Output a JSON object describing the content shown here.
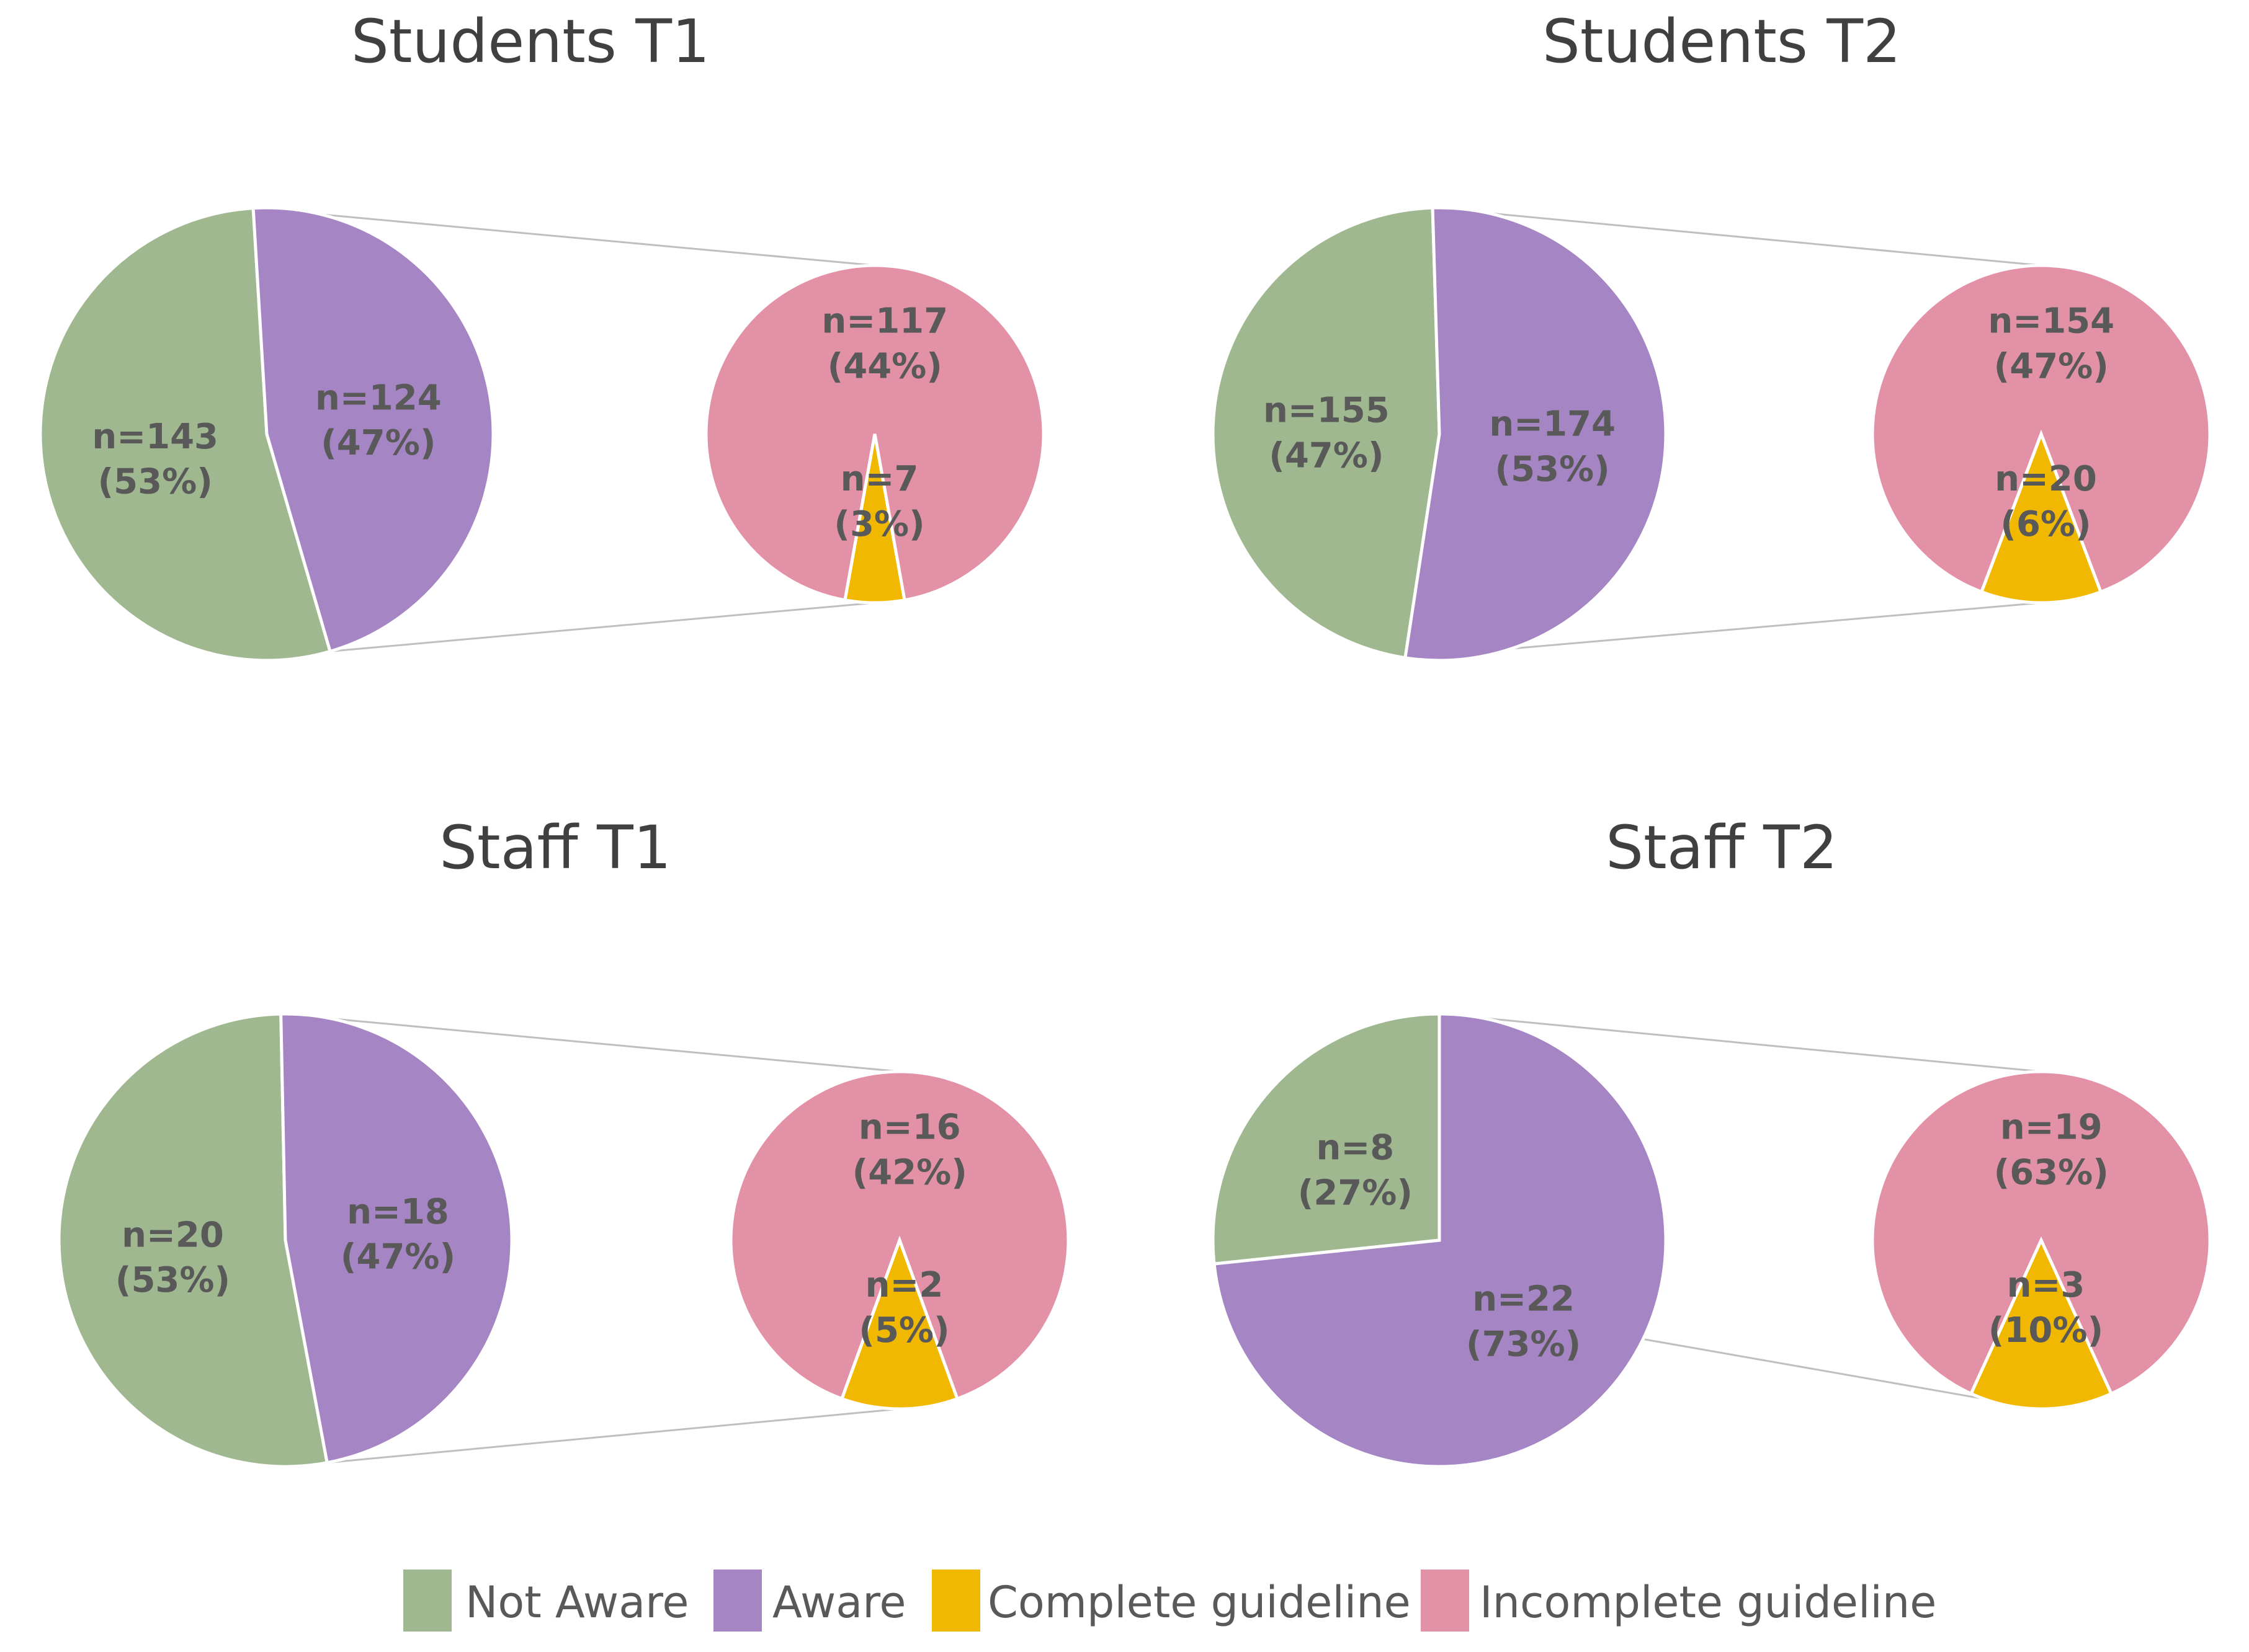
{
  "chart_data": [
    {
      "type": "bar-of-pie",
      "title": "Students T1",
      "main": {
        "categories": [
          "Not Aware",
          "Aware"
        ],
        "values": [
          143,
          124
        ],
        "labels": [
          [
            "n=143",
            "(53%)"
          ],
          [
            "n=124",
            "(47%)"
          ]
        ]
      },
      "detail": {
        "categories": [
          "Incomplete guideline",
          "Complete guideline"
        ],
        "values": [
          117,
          7
        ],
        "labels": [
          [
            "n=117",
            "(44%)"
          ],
          [
            "n=7",
            "(3%)"
          ]
        ]
      }
    },
    {
      "type": "bar-of-pie",
      "title": "Students T2",
      "main": {
        "categories": [
          "Not Aware",
          "Aware"
        ],
        "values": [
          155,
          174
        ],
        "labels": [
          [
            "n=155",
            "(47%)"
          ],
          [
            "n=174",
            "(53%)"
          ]
        ]
      },
      "detail": {
        "categories": [
          "Incomplete guideline",
          "Complete guideline"
        ],
        "values": [
          154,
          20
        ],
        "labels": [
          [
            "n=154",
            "(47%)"
          ],
          [
            "n=20",
            "(6%)"
          ]
        ]
      }
    },
    {
      "type": "bar-of-pie",
      "title": "Staff T1",
      "main": {
        "categories": [
          "Not Aware",
          "Aware"
        ],
        "values": [
          20,
          18
        ],
        "labels": [
          [
            "n=20",
            "(53%)"
          ],
          [
            "n=18",
            "(47%)"
          ]
        ]
      },
      "detail": {
        "categories": [
          "Incomplete guideline",
          "Complete guideline"
        ],
        "values": [
          16,
          2
        ],
        "labels": [
          [
            "n=16",
            "(42%)"
          ],
          [
            "n=2",
            "(5%)"
          ]
        ]
      }
    },
    {
      "type": "bar-of-pie",
      "title": "Staff T2",
      "main": {
        "categories": [
          "Not Aware",
          "Aware"
        ],
        "values": [
          8,
          22
        ],
        "labels": [
          [
            "n=8",
            "(27%)"
          ],
          [
            "n=22",
            "(73%)"
          ]
        ]
      },
      "detail": {
        "categories": [
          "Incomplete guideline",
          "Complete guideline"
        ],
        "values": [
          19,
          3
        ],
        "labels": [
          [
            "n=19",
            "(63%)"
          ],
          [
            "n=3",
            "(10%)"
          ]
        ]
      }
    }
  ],
  "legend": [
    {
      "name": "Not Aware",
      "color": "#9fb890"
    },
    {
      "name": "Aware",
      "color": "#a585c3"
    },
    {
      "name": "Complete guideline",
      "color": "#f0b800"
    },
    {
      "name": "Incomplete guideline",
      "color": "#e391a7"
    }
  ],
  "colors": {
    "Not Aware": "#9fb890",
    "Aware": "#a585c3",
    "Complete guideline": "#f0b800",
    "Incomplete guideline": "#e391a7",
    "connector": "#bfbfbf"
  }
}
